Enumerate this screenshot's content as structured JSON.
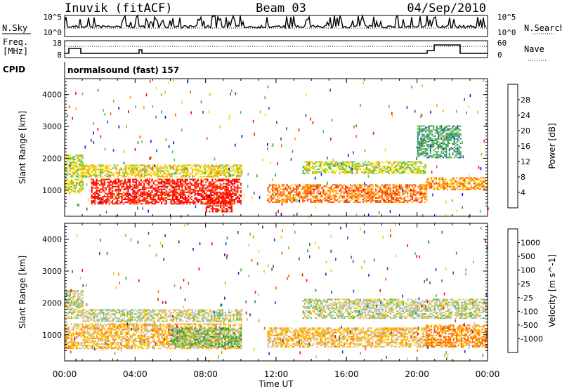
{
  "header": {
    "station": "Inuvik (fitACF)",
    "beam": "Beam 03",
    "date": "04/Sep/2010"
  },
  "labels": {
    "nsky": "N.Sky",
    "nsearch": "N.Search",
    "freq_line1": "Freq.",
    "freq_line2": "[MHz]",
    "nave": "Nave",
    "cpid": "CPID",
    "cpid_value": "normalsound (fast) 157",
    "noise_ticks": [
      "10^5",
      "10^0"
    ],
    "freq_ticks": [
      "18",
      "8"
    ],
    "nave_ticks": [
      "60",
      "0"
    ]
  },
  "chart_data": [
    {
      "type": "heatmap",
      "panel": "power",
      "ylabel": "Slant Range [km]",
      "xlabel": "Time UT",
      "x_ticks": [
        "00:00",
        "04:00",
        "08:00",
        "12:00",
        "16:00",
        "20:00",
        "00:00"
      ],
      "x_range_hours": [
        0,
        24
      ],
      "y_ticks": [
        1000,
        2000,
        3000,
        4000
      ],
      "ylim": [
        180,
        4500
      ],
      "colorbar": {
        "label": "Power [dB]",
        "ticks": [
          "4",
          "8",
          "12",
          "16",
          "20",
          "24",
          "28"
        ],
        "range": [
          0,
          30
        ],
        "colors": [
          "#0000ff",
          "#2050b0",
          "#3f8f60",
          "#50c050",
          "#f0e000",
          "#ffa500",
          "#ff5000",
          "#ff0000"
        ]
      },
      "bands": [
        {
          "t0": 0.0,
          "t1": 1.0,
          "r0": 900,
          "r1": 2100,
          "level": 16
        },
        {
          "t0": 1.0,
          "t1": 10.0,
          "r0": 1400,
          "r1": 1800,
          "level": 18
        },
        {
          "t0": 1.5,
          "t1": 10.0,
          "r0": 550,
          "r1": 1350,
          "level": 30
        },
        {
          "t0": 8.0,
          "t1": 9.5,
          "r0": 300,
          "r1": 900,
          "level": 30
        },
        {
          "t0": 11.5,
          "t1": 20.5,
          "r0": 600,
          "r1": 1150,
          "level": 24
        },
        {
          "t0": 13.5,
          "t1": 20.5,
          "r0": 1500,
          "r1": 1900,
          "level": 16
        },
        {
          "t0": 20.5,
          "t1": 24.0,
          "r0": 1000,
          "r1": 1400,
          "level": 22
        },
        {
          "t0": 20.0,
          "t1": 22.5,
          "r0": 2000,
          "r1": 3000,
          "level": 10
        }
      ]
    },
    {
      "type": "heatmap",
      "panel": "velocity",
      "ylabel": "Slant Range [km]",
      "xlabel": "Time UT",
      "x_ticks": [
        "00:00",
        "04:00",
        "08:00",
        "12:00",
        "16:00",
        "20:00",
        "00:00"
      ],
      "x_range_hours": [
        0,
        24
      ],
      "y_ticks": [
        1000,
        2000,
        3000,
        4000
      ],
      "ylim": [
        180,
        4500
      ],
      "colorbar": {
        "label": "Velocity [m s^-1]",
        "ticks": [
          "1000",
          "500",
          "100",
          "25",
          "-25",
          "-100",
          "-500",
          "-1000"
        ],
        "colors": [
          "#1030c0",
          "#205090",
          "#308040",
          "#60c040",
          "#c0c0c0",
          "#ffc000",
          "#ff8000",
          "#ff5000",
          "#ff0000"
        ]
      },
      "bands": [
        {
          "t0": 0.0,
          "t1": 1.0,
          "r0": 1500,
          "r1": 2400,
          "level": 25
        },
        {
          "t0": 1.0,
          "t1": 10.0,
          "r0": 1400,
          "r1": 1800,
          "level": 25
        },
        {
          "t0": 0.0,
          "t1": 10.0,
          "r0": 550,
          "r1": 1350,
          "level": -100
        },
        {
          "t0": 6.0,
          "t1": 10.0,
          "r0": 600,
          "r1": 1200,
          "level": 100
        },
        {
          "t0": 11.5,
          "t1": 20.5,
          "r0": 600,
          "r1": 1200,
          "level": -100
        },
        {
          "t0": 13.5,
          "t1": 24.0,
          "r0": 1500,
          "r1": 2100,
          "level": 25
        },
        {
          "t0": 20.5,
          "t1": 24.0,
          "r0": 600,
          "r1": 1300,
          "level": -500
        }
      ]
    }
  ]
}
